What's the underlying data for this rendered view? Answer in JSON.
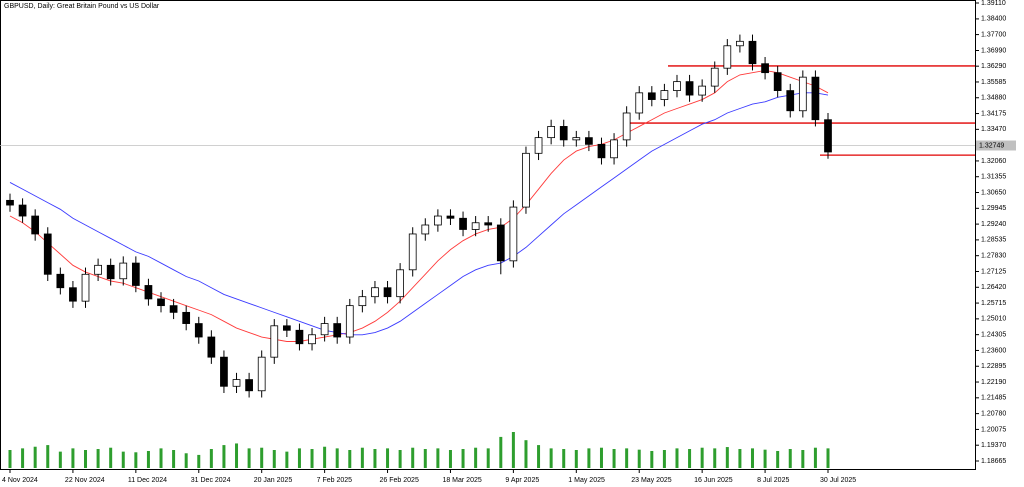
{
  "chart_data": {
    "type": "candlestick",
    "title": "GBPUSD, Daily:  Great Britain Pound vs US Dollar",
    "categories": [
      "4 Nov 2024",
      null,
      null,
      null,
      null,
      "22 Nov 2024",
      null,
      null,
      null,
      null,
      "11 Dec 2024",
      null,
      null,
      null,
      null,
      "31 Dec 2024",
      null,
      null,
      null,
      null,
      "20 Jan 2025",
      null,
      null,
      null,
      null,
      "7 Feb 2025",
      null,
      null,
      null,
      null,
      "26 Feb 2025",
      null,
      null,
      null,
      null,
      "18 Mar 2025",
      null,
      null,
      null,
      null,
      "9 Apr 2025",
      null,
      null,
      null,
      null,
      "1 May 2025",
      null,
      null,
      null,
      null,
      "23 May 2025",
      null,
      null,
      null,
      null,
      "16 Jun 2025",
      null,
      null,
      null,
      null,
      "8 Jul 2025",
      null,
      null,
      null,
      null,
      "30 Jul 2025"
    ],
    "open": [
      1.303,
      1.3009,
      1.296,
      1.288,
      1.27,
      1.264,
      1.258,
      1.27,
      1.274,
      1.268,
      1.275,
      1.265,
      1.259,
      1.256,
      1.253,
      1.248,
      1.242,
      1.233,
      1.22,
      1.223,
      1.218,
      1.233,
      1.247,
      1.245,
      1.239,
      1.243,
      1.248,
      1.242,
      1.256,
      1.26,
      1.264,
      1.26,
      1.272,
      1.288,
      1.292,
      1.296,
      1.295,
      1.29,
      1.293,
      1.292,
      1.276,
      1.3,
      1.324,
      1.331,
      1.336,
      1.33,
      1.331,
      1.328,
      1.322,
      1.33,
      1.342,
      1.351,
      1.348,
      1.352,
      1.356,
      1.35,
      1.354,
      1.362,
      1.372,
      1.374,
      1.364,
      1.36,
      1.352,
      1.343,
      1.358,
      1.339
    ],
    "high": [
      1.306,
      1.3039,
      1.299,
      1.291,
      1.273,
      1.267,
      1.273,
      1.277,
      1.277,
      1.278,
      1.278,
      1.268,
      1.262,
      1.259,
      1.256,
      1.251,
      1.245,
      1.236,
      1.226,
      1.226,
      1.236,
      1.25,
      1.25,
      1.248,
      1.246,
      1.251,
      1.251,
      1.259,
      1.263,
      1.267,
      1.267,
      1.275,
      1.291,
      1.295,
      1.299,
      1.299,
      1.298,
      1.296,
      1.296,
      1.295,
      1.303,
      1.327,
      1.334,
      1.339,
      1.339,
      1.334,
      1.334,
      1.331,
      1.333,
      1.345,
      1.354,
      1.354,
      1.355,
      1.359,
      1.359,
      1.357,
      1.365,
      1.375,
      1.377,
      1.377,
      1.367,
      1.363,
      1.355,
      1.361,
      1.361,
      1.342
    ],
    "low": [
      1.2979,
      1.293,
      1.285,
      1.267,
      1.261,
      1.255,
      1.255,
      1.267,
      1.265,
      1.265,
      1.262,
      1.256,
      1.253,
      1.25,
      1.245,
      1.239,
      1.23,
      1.217,
      1.217,
      1.215,
      1.215,
      1.23,
      1.242,
      1.236,
      1.236,
      1.24,
      1.239,
      1.239,
      1.253,
      1.257,
      1.257,
      1.257,
      1.269,
      1.285,
      1.289,
      1.292,
      1.287,
      1.287,
      1.289,
      1.27,
      1.273,
      1.297,
      1.321,
      1.328,
      1.327,
      1.327,
      1.325,
      1.319,
      1.319,
      1.327,
      1.339,
      1.345,
      1.345,
      1.349,
      1.347,
      1.347,
      1.351,
      1.359,
      1.369,
      1.361,
      1.357,
      1.349,
      1.34,
      1.34,
      1.336,
      1.3216
    ],
    "close": [
      1.3009,
      1.296,
      1.288,
      1.27,
      1.264,
      1.258,
      1.27,
      1.274,
      1.268,
      1.275,
      1.265,
      1.259,
      1.256,
      1.253,
      1.248,
      1.242,
      1.233,
      1.22,
      1.223,
      1.218,
      1.233,
      1.247,
      1.245,
      1.239,
      1.243,
      1.248,
      1.242,
      1.256,
      1.26,
      1.264,
      1.26,
      1.272,
      1.288,
      1.292,
      1.296,
      1.295,
      1.29,
      1.293,
      1.292,
      1.276,
      1.3,
      1.324,
      1.331,
      1.336,
      1.33,
      1.331,
      1.328,
      1.322,
      1.33,
      1.342,
      1.351,
      1.348,
      1.352,
      1.356,
      1.35,
      1.354,
      1.362,
      1.372,
      1.374,
      1.364,
      1.36,
      1.352,
      1.343,
      1.358,
      1.339,
      1.3246
    ],
    "series": [
      {
        "color": "#ff3b3b",
        "values": [
          1.296,
          1.293,
          1.289,
          1.284,
          1.279,
          1.274,
          1.271,
          1.269,
          1.267,
          1.266,
          1.264,
          1.262,
          1.26,
          1.258,
          1.256,
          1.254,
          1.252,
          1.249,
          1.246,
          1.244,
          1.242,
          1.241,
          1.24,
          1.24,
          1.241,
          1.242,
          1.243,
          1.244,
          1.246,
          1.249,
          1.253,
          1.258,
          1.264,
          1.27,
          1.276,
          1.281,
          1.285,
          1.288,
          1.29,
          1.291,
          1.295,
          1.301,
          1.308,
          1.315,
          1.321,
          1.325,
          1.327,
          1.328,
          1.33,
          1.333,
          1.336,
          1.339,
          1.342,
          1.344,
          1.346,
          1.348,
          1.351,
          1.356,
          1.359,
          1.36,
          1.361,
          1.36,
          1.358,
          1.356,
          1.354,
          1.351
        ]
      },
      {
        "color": "#3b3bff",
        "values": [
          1.311,
          1.308,
          1.305,
          1.302,
          1.299,
          1.295,
          1.292,
          1.289,
          1.286,
          1.283,
          1.28,
          1.278,
          1.275,
          1.272,
          1.269,
          1.267,
          1.264,
          1.261,
          1.259,
          1.257,
          1.255,
          1.253,
          1.251,
          1.249,
          1.247,
          1.245,
          1.244,
          1.243,
          1.243,
          1.244,
          1.246,
          1.249,
          1.253,
          1.257,
          1.261,
          1.265,
          1.269,
          1.272,
          1.274,
          1.275,
          1.278,
          1.282,
          1.287,
          1.292,
          1.297,
          1.301,
          1.305,
          1.309,
          1.313,
          1.317,
          1.321,
          1.325,
          1.328,
          1.331,
          1.334,
          1.337,
          1.339,
          1.342,
          1.344,
          1.346,
          1.347,
          1.349,
          1.35,
          1.351,
          1.351,
          1.35
        ]
      }
    ],
    "volume": [
      55,
      60,
      65,
      70,
      50,
      60,
      55,
      58,
      62,
      50,
      48,
      52,
      60,
      55,
      45,
      40,
      58,
      70,
      75,
      60,
      62,
      55,
      50,
      60,
      58,
      65,
      60,
      55,
      62,
      58,
      60,
      55,
      62,
      58,
      60,
      55,
      58,
      62,
      60,
      95,
      110,
      85,
      70,
      60,
      58,
      55,
      60,
      62,
      58,
      60,
      56,
      52,
      55,
      60,
      58,
      62,
      60,
      64,
      58,
      60,
      56,
      52,
      58,
      55,
      62,
      60
    ],
    "volume_color": "#2e9e2e",
    "hlines": [
      1.363,
      1.3375,
      1.3232
    ],
    "hline_color": "#e00000",
    "last_price": 1.32749,
    "ylim": [
      1.18665,
      1.3911
    ],
    "yticks": [
      {
        "value": 1.3911,
        "label": "1.39110"
      },
      {
        "value": 1.384,
        "label": "1.38400"
      },
      {
        "value": 1.377,
        "label": "1.37700"
      },
      {
        "value": 1.3699,
        "label": "1.36990"
      },
      {
        "value": 1.3629,
        "label": "1.36290"
      },
      1.35585,
      {
        "value": 1.3488,
        "label": "1.34880"
      },
      1.34175,
      {
        "value": 1.3347,
        "label": "1.33470"
      },
      1.32765,
      {
        "value": 1.3206,
        "label": "1.32060"
      },
      1.31355,
      {
        "value": 1.3065,
        "label": "1.30650"
      },
      1.29945,
      {
        "value": 1.2924,
        "label": "1.29240"
      },
      1.28535,
      {
        "value": 1.2783,
        "label": "1.27830"
      },
      1.27125,
      {
        "value": 1.2642,
        "label": "1.26420"
      },
      1.25715,
      {
        "value": 1.2501,
        "label": "1.25010"
      },
      1.24305,
      {
        "value": 1.236,
        "label": "1.23600"
      },
      1.22895,
      {
        "value": 1.2219,
        "label": "1.22190"
      },
      1.21485,
      {
        "value": 1.2078,
        "label": "1.20780"
      },
      1.20075,
      {
        "value": 1.1937,
        "label": "1.19370"
      },
      1.18665
    ]
  }
}
